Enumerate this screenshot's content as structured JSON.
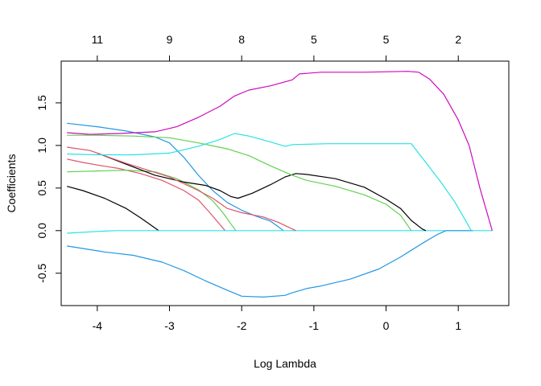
{
  "chart_data": {
    "type": "line",
    "title": "",
    "xlabel": "Log Lambda",
    "ylabel": "Coefficients",
    "xlim": [
      -4.5,
      1.7
    ],
    "ylim": [
      -0.88,
      1.99
    ],
    "x_ticks": [
      "-4",
      "-3",
      "-2",
      "-1",
      "0",
      "1"
    ],
    "x_tick_values": [
      -4,
      -3,
      -2,
      -1,
      0,
      1
    ],
    "y_ticks": [
      "-0.5",
      "0.0",
      "0.5",
      "1.0",
      "1.5"
    ],
    "y_tick_values": [
      -0.5,
      0,
      0.5,
      1.0,
      1.5
    ],
    "top_ticks": [
      "11",
      "9",
      "8",
      "5",
      "5",
      "2"
    ],
    "top_tick_values": [
      -4,
      -3,
      -2,
      -1,
      0,
      1
    ],
    "grid": false,
    "series": [
      {
        "color": "#000000",
        "points": [
          [
            -4.42,
            0.52
          ],
          [
            -4.2,
            0.47
          ],
          [
            -3.9,
            0.38
          ],
          [
            -3.6,
            0.26
          ],
          [
            -3.4,
            0.15
          ],
          [
            -3.25,
            0.06
          ],
          [
            -3.15,
            0.0
          ]
        ]
      },
      {
        "color": "#DF536B",
        "points": [
          [
            -4.42,
            0.84
          ],
          [
            -4.2,
            0.8
          ],
          [
            -4.0,
            0.77
          ],
          [
            -3.7,
            0.73
          ],
          [
            -3.4,
            0.67
          ],
          [
            -3.1,
            0.59
          ],
          [
            -2.8,
            0.47
          ],
          [
            -2.6,
            0.36
          ],
          [
            -2.45,
            0.22
          ],
          [
            -2.3,
            0.07
          ],
          [
            -2.23,
            0.0
          ]
        ]
      },
      {
        "color": "#61D04F",
        "points": [
          [
            -4.42,
            0.69
          ],
          [
            -4.0,
            0.7
          ],
          [
            -3.6,
            0.71
          ],
          [
            -3.2,
            0.69
          ],
          [
            -2.9,
            0.61
          ],
          [
            -2.6,
            0.48
          ],
          [
            -2.4,
            0.35
          ],
          [
            -2.25,
            0.2
          ],
          [
            -2.15,
            0.08
          ],
          [
            -2.08,
            0.0
          ]
        ]
      },
      {
        "color": "#2297E6",
        "points": [
          [
            -4.42,
            1.26
          ],
          [
            -4.0,
            1.22
          ],
          [
            -3.6,
            1.17
          ],
          [
            -3.2,
            1.1
          ],
          [
            -3.0,
            1.03
          ],
          [
            -2.8,
            0.86
          ],
          [
            -2.6,
            0.65
          ],
          [
            -2.4,
            0.47
          ],
          [
            -2.2,
            0.33
          ],
          [
            -2.0,
            0.24
          ],
          [
            -1.8,
            0.17
          ],
          [
            -1.6,
            0.11
          ],
          [
            -1.5,
            0.05
          ],
          [
            -1.42,
            0.0
          ]
        ]
      },
      {
        "color": "#28E2E5",
        "points": [
          [
            -4.42,
            -0.03
          ],
          [
            -4.0,
            -0.01
          ],
          [
            -3.75,
            0.0
          ],
          [
            1.2,
            0.0
          ],
          [
            1.47,
            0.0
          ]
        ]
      },
      {
        "color": "#CD0BBC",
        "points": [
          [
            -4.42,
            1.15
          ],
          [
            -4.1,
            1.13
          ],
          [
            -3.7,
            1.14
          ],
          [
            -3.2,
            1.16
          ],
          [
            -2.9,
            1.22
          ],
          [
            -2.6,
            1.33
          ],
          [
            -2.3,
            1.46
          ],
          [
            -2.1,
            1.58
          ],
          [
            -1.9,
            1.65
          ],
          [
            -1.6,
            1.7
          ],
          [
            -1.3,
            1.77
          ],
          [
            -1.2,
            1.84
          ],
          [
            -0.9,
            1.86
          ],
          [
            -0.3,
            1.86
          ],
          [
            0.3,
            1.87
          ],
          [
            0.45,
            1.86
          ],
          [
            0.6,
            1.78
          ],
          [
            0.8,
            1.6
          ],
          [
            1.0,
            1.3
          ],
          [
            1.15,
            1.0
          ],
          [
            1.3,
            0.5
          ],
          [
            1.47,
            0.0
          ]
        ]
      },
      {
        "color": "#F5C710",
        "points": []
      },
      {
        "color": "#9E9E9E",
        "points": []
      },
      {
        "color": "#000000",
        "points": [
          [
            -4.0,
            0.91
          ],
          [
            -3.6,
            0.78
          ],
          [
            -3.2,
            0.65
          ],
          [
            -2.8,
            0.57
          ],
          [
            -2.5,
            0.53
          ],
          [
            -2.3,
            0.47
          ],
          [
            -2.15,
            0.4
          ],
          [
            -2.05,
            0.38
          ],
          [
            -1.85,
            0.44
          ],
          [
            -1.6,
            0.54
          ],
          [
            -1.4,
            0.63
          ],
          [
            -1.25,
            0.67
          ],
          [
            -1.1,
            0.66
          ],
          [
            -0.7,
            0.61
          ],
          [
            -0.3,
            0.51
          ],
          [
            0.0,
            0.37
          ],
          [
            0.2,
            0.26
          ],
          [
            0.35,
            0.12
          ],
          [
            0.5,
            0.02
          ],
          [
            0.55,
            0.0
          ]
        ]
      },
      {
        "color": "#DF536B",
        "points": [
          [
            -4.42,
            0.98
          ],
          [
            -4.1,
            0.94
          ],
          [
            -3.8,
            0.85
          ],
          [
            -3.6,
            0.79
          ],
          [
            -3.3,
            0.71
          ],
          [
            -3.0,
            0.63
          ],
          [
            -2.8,
            0.55
          ],
          [
            -2.6,
            0.47
          ],
          [
            -2.4,
            0.38
          ],
          [
            -2.2,
            0.26
          ],
          [
            -2.0,
            0.21
          ],
          [
            -1.7,
            0.16
          ],
          [
            -1.5,
            0.1
          ],
          [
            -1.35,
            0.04
          ],
          [
            -1.25,
            0.0
          ]
        ]
      },
      {
        "color": "#61D04F",
        "points": [
          [
            -4.42,
            1.12
          ],
          [
            -4.0,
            1.12
          ],
          [
            -3.5,
            1.11
          ],
          [
            -3.0,
            1.09
          ],
          [
            -2.6,
            1.03
          ],
          [
            -2.2,
            0.96
          ],
          [
            -1.9,
            0.88
          ],
          [
            -1.6,
            0.76
          ],
          [
            -1.3,
            0.65
          ],
          [
            -1.1,
            0.59
          ],
          [
            -0.7,
            0.52
          ],
          [
            -0.3,
            0.42
          ],
          [
            0.0,
            0.31
          ],
          [
            0.2,
            0.18
          ],
          [
            0.35,
            0.0
          ]
        ]
      },
      {
        "color": "#2297E6",
        "points": [
          [
            -4.42,
            -0.18
          ],
          [
            -4.2,
            -0.21
          ],
          [
            -3.9,
            -0.25
          ],
          [
            -3.5,
            -0.29
          ],
          [
            -3.1,
            -0.37
          ],
          [
            -2.8,
            -0.47
          ],
          [
            -2.5,
            -0.59
          ],
          [
            -2.2,
            -0.7
          ],
          [
            -2.0,
            -0.77
          ],
          [
            -1.7,
            -0.78
          ],
          [
            -1.4,
            -0.76
          ],
          [
            -1.3,
            -0.73
          ],
          [
            -1.1,
            -0.68
          ],
          [
            -0.9,
            -0.65
          ],
          [
            -0.5,
            -0.57
          ],
          [
            -0.1,
            -0.45
          ],
          [
            0.2,
            -0.31
          ],
          [
            0.5,
            -0.15
          ],
          [
            0.7,
            -0.05
          ],
          [
            0.83,
            0.0
          ],
          [
            1.2,
            0.0
          ]
        ]
      },
      {
        "color": "#28E2E5",
        "points": [
          [
            -4.42,
            0.9
          ],
          [
            -4.0,
            0.89
          ],
          [
            -3.5,
            0.89
          ],
          [
            -3.0,
            0.91
          ],
          [
            -2.6,
            0.99
          ],
          [
            -2.3,
            1.07
          ],
          [
            -2.1,
            1.14
          ],
          [
            -1.9,
            1.11
          ],
          [
            -1.6,
            1.04
          ],
          [
            -1.4,
            0.99
          ],
          [
            -1.3,
            1.01
          ],
          [
            -0.8,
            1.02
          ],
          [
            0.0,
            1.02
          ],
          [
            0.35,
            1.02
          ],
          [
            0.55,
            0.8
          ],
          [
            0.75,
            0.58
          ],
          [
            0.95,
            0.34
          ],
          [
            1.1,
            0.12
          ],
          [
            1.18,
            0.0
          ]
        ]
      }
    ]
  }
}
